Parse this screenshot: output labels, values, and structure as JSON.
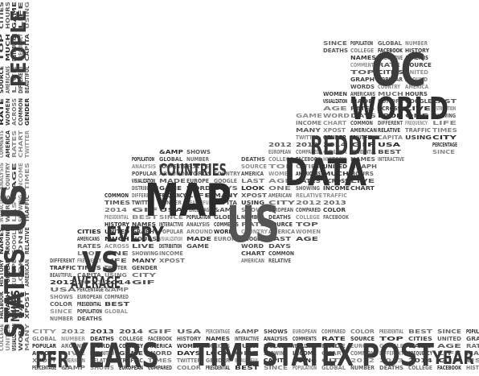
{
  "words": {
    "big": [
      "OC",
      "WORLD",
      "MAP",
      "US",
      "DATA",
      "REDDIT",
      "COUNTRIES",
      "EVERY",
      "VS",
      "AVERAGE",
      "YEARS",
      "TIME",
      "STATEX",
      "POST",
      "YEAR",
      "PER",
      "STATES",
      "PEOPLE",
      "US",
      "MILES"
    ],
    "mid": [
      "SINCE",
      "POPULATION",
      "GLOBAL",
      "NUMBER",
      "DEATHS",
      "COLLEGE",
      "FACEBOOK",
      "HISTORY",
      "NAMES",
      "INTERACTIVE",
      "ANALYSIS",
      "COMMENTS",
      "RATE",
      "SOURCE",
      "TOP",
      "CITIES",
      "UNITED",
      "GRAPH",
      "POPULAR",
      "AROUND",
      "WORDS",
      "COUNTRY",
      "AMERICA",
      "WOMEN",
      "AMERICANS",
      "MUCH",
      "HOURS",
      "VISUALIZATION",
      "MADE",
      "EUROPE",
      "GOOGLE",
      "LAST",
      "AGE",
      "RATES",
      "ACROSS",
      "LIVE",
      "DISTRIBUTION",
      "GAME",
      "WORD",
      "DAYS",
      "LOOK",
      "ONE",
      "SHOWING",
      "INCOME",
      "CHART",
      "COMMON",
      "DIFFERENT",
      "FREQUENCY",
      "LIFE",
      "MANY",
      "XPOST",
      "AMERICAN",
      "RELATIVE",
      "TRAFFIC",
      "TIMES",
      "TWITTER",
      "GENDER",
      "BEAUTIFUL",
      "CAPITA",
      "USING",
      "CITY",
      "2012",
      "2013",
      "2014",
      "GIF",
      "USA",
      "PERCENTAGE",
      "&AMP",
      "SHOWS",
      "EUROPEAN",
      "COMPARED",
      "COLOR",
      "PRESIDENTIAL",
      "BEST"
    ]
  }
}
